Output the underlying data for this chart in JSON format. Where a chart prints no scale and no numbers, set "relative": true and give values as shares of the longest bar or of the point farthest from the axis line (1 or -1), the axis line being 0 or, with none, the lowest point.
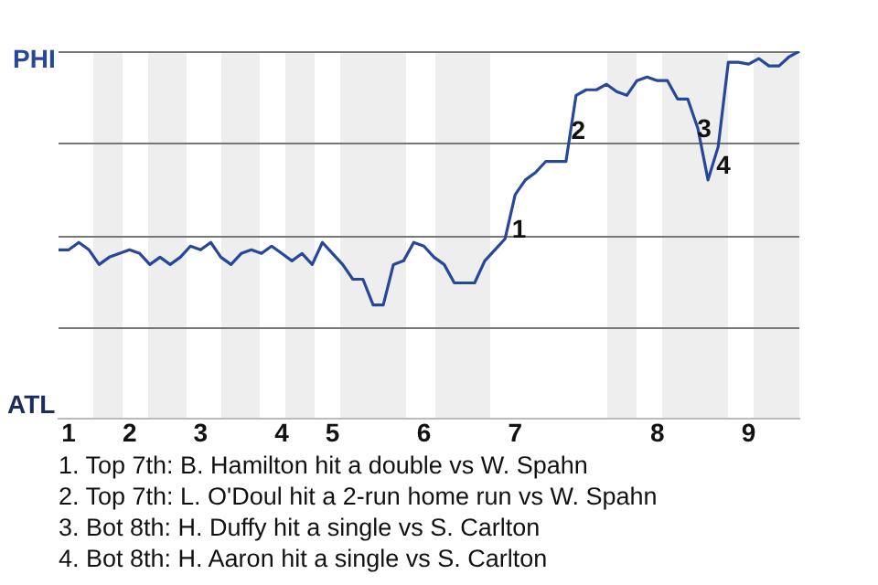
{
  "chart_data": {
    "type": "line",
    "relative": true,
    "categories": [
      null,
      "1",
      null,
      null,
      null,
      null,
      null,
      "2",
      null,
      null,
      null,
      null,
      null,
      null,
      "3",
      null,
      null,
      null,
      null,
      null,
      null,
      null,
      "4",
      null,
      null,
      null,
      null,
      "5",
      null,
      null,
      null,
      null,
      null,
      null,
      null,
      null,
      "6",
      null,
      null,
      null,
      null,
      null,
      null,
      null,
      null,
      "7",
      null,
      null,
      null,
      null,
      null,
      null,
      null,
      null,
      null,
      null,
      null,
      null,
      null,
      "8",
      null,
      null,
      null,
      null,
      null,
      null,
      null,
      null,
      "9",
      null,
      null,
      null,
      null,
      null
    ],
    "grid": "y",
    "legend": false,
    "marker": "none",
    "line_style": "solid",
    "series": [
      {
        "color": "#27479a",
        "values": [
          0.46,
          0.46,
          0.48,
          0.46,
          0.42,
          0.44,
          0.45,
          0.46,
          0.45,
          0.42,
          0.44,
          0.42,
          0.44,
          0.47,
          0.46,
          0.48,
          0.44,
          0.42,
          0.45,
          0.46,
          0.45,
          0.47,
          0.45,
          0.43,
          0.45,
          0.42,
          0.48,
          0.45,
          0.42,
          0.38,
          0.38,
          0.31,
          0.31,
          0.42,
          0.43,
          0.48,
          0.47,
          0.44,
          0.42,
          0.37,
          0.37,
          0.37,
          0.43,
          0.46,
          0.49,
          0.61,
          0.65,
          0.67,
          0.7,
          0.7,
          0.7,
          0.88,
          0.895,
          0.895,
          0.91,
          0.89,
          0.88,
          0.92,
          0.93,
          0.92,
          0.92,
          0.87,
          0.87,
          0.79,
          0.65,
          0.74,
          0.97,
          0.97,
          0.965,
          0.98,
          0.96,
          0.96,
          0.985,
          1
        ]
      }
    ],
    "annotations": [
      "PHI",
      "ATL",
      "1",
      "2",
      "3",
      "4",
      "1. Top 7th: B. Hamilton hit a double vs W. Spahn",
      "2. Top 7th: L. O'Doul hit a 2-run home run vs W. Spahn",
      "3. Bot 8th: H. Duffy hit a single vs S. Carlton",
      "4. Bot 8th: H. Aaron hit a single vs S. Carlton"
    ]
  }
}
